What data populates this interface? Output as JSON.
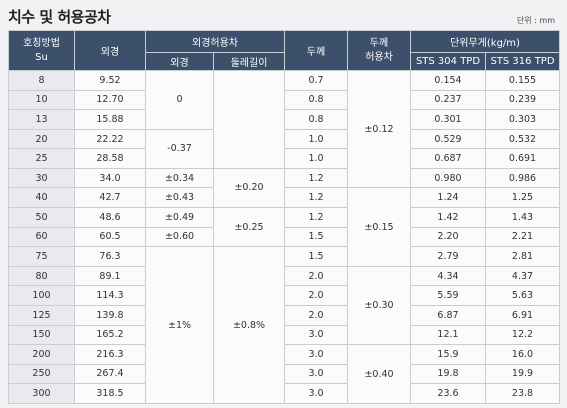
{
  "title": "치수 및 허용공차",
  "unit": "단위 : mm",
  "headers": {
    "nominal_line1": "호칭방법",
    "nominal_line2": "Su",
    "outer_dia": "외경",
    "outer_tol_group": "외경허용차",
    "outer_tol": "외경",
    "circ_tol": "둘레길이",
    "thickness": "두께",
    "thick_tol_line1": "두께",
    "thick_tol_line2": "허용차",
    "weight_group": "단위무게(kg/m)",
    "sts304": "STS 304 TPD",
    "sts316": "STS 316 TPD"
  },
  "rows": [
    {
      "su": "8",
      "od": "9.52",
      "t": "0.7",
      "w304": "0.154",
      "w316": "0.155"
    },
    {
      "su": "10",
      "od": "12.70",
      "t": "0.8",
      "w304": "0.237",
      "w316": "0.239"
    },
    {
      "su": "13",
      "od": "15.88",
      "t": "0.8",
      "w304": "0.301",
      "w316": "0.303"
    },
    {
      "su": "20",
      "od": "22.22",
      "t": "1.0",
      "w304": "0.529",
      "w316": "0.532"
    },
    {
      "su": "25",
      "od": "28.58",
      "t": "1.0",
      "w304": "0.687",
      "w316": "0.691"
    },
    {
      "su": "30",
      "od": "34.0",
      "t": "1.2",
      "w304": "0.980",
      "w316": "0.986"
    },
    {
      "su": "40",
      "od": "42.7",
      "t": "1.2",
      "w304": "1.24",
      "w316": "1.25"
    },
    {
      "su": "50",
      "od": "48.6",
      "t": "1.2",
      "w304": "1.42",
      "w316": "1.43"
    },
    {
      "su": "60",
      "od": "60.5",
      "t": "1.5",
      "w304": "2.20",
      "w316": "2.21"
    },
    {
      "su": "75",
      "od": "76.3",
      "t": "1.5",
      "w304": "2.79",
      "w316": "2.81"
    },
    {
      "su": "80",
      "od": "89.1",
      "t": "2.0",
      "w304": "4.34",
      "w316": "4.37"
    },
    {
      "su": "100",
      "od": "114.3",
      "t": "2.0",
      "w304": "5.59",
      "w316": "5.63"
    },
    {
      "su": "125",
      "od": "139.8",
      "t": "2.0",
      "w304": "6.87",
      "w316": "6.91"
    },
    {
      "su": "150",
      "od": "165.2",
      "t": "3.0",
      "w304": "12.1",
      "w316": "12.2"
    },
    {
      "su": "200",
      "od": "216.3",
      "t": "3.0",
      "w304": "15.9",
      "w316": "16.0"
    },
    {
      "su": "250",
      "od": "267.4",
      "t": "3.0",
      "w304": "19.8",
      "w316": "19.9"
    },
    {
      "su": "300",
      "od": "318.5",
      "t": "3.0",
      "w304": "23.6",
      "w316": "23.8"
    }
  ],
  "tol": {
    "od_0": "0",
    "od_m037": "-0.37",
    "od_034": "±0.34",
    "od_043": "±0.43",
    "od_049": "±0.49",
    "od_060": "±0.60",
    "od_1pct": "±1%",
    "circ_020": "±0.20",
    "circ_025": "±0.25",
    "circ_08pct": "±0.8%",
    "t_012": "±0.12",
    "t_015": "±0.15",
    "t_030": "±0.30",
    "t_040": "±0.40"
  }
}
